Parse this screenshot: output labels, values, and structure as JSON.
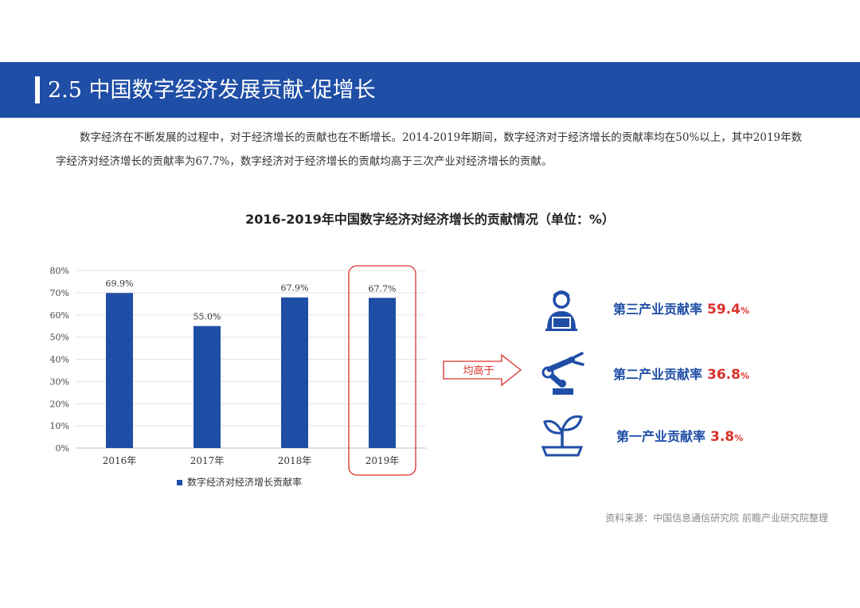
{
  "header": {
    "title": "2.5 中国数字经济发展贡献-促增长"
  },
  "intro": {
    "text": "数字经济在不断发展的过程中，对于经济增长的贡献也在不断增长。2014-2019年期间，数字经济对于经济增长的贡献率均在50%以上，其中2019年数字经济对经济增长的贡献率为67.7%，数字经济对于经济增长的贡献均高于三次产业对经济增长的贡献。"
  },
  "chart_data": {
    "type": "bar",
    "title": "2016-2019年中国数字经济对经济增长的贡献情况（单位：%）",
    "categories": [
      "2016年",
      "2017年",
      "2018年",
      "2019年"
    ],
    "series": [
      {
        "name": "数字经济对经济增长贡献率",
        "values": [
          69.9,
          55.0,
          67.9,
          67.7
        ]
      }
    ],
    "value_labels": [
      "69.9%",
      "55.0%",
      "67.9%",
      "67.7%"
    ],
    "ylim": [
      0,
      80
    ],
    "yticks": [
      "0%",
      "10%",
      "20%",
      "30%",
      "40%",
      "50%",
      "60%",
      "70%",
      "80%"
    ],
    "grid": true,
    "highlight_category": "2019年",
    "legend_position": "bottom",
    "bar_color": "#1f4ea6",
    "highlight_color": "#d9312b"
  },
  "comparison": {
    "arrow_label": "均高于",
    "items": [
      {
        "icon": "worker-at-laptop-icon",
        "label": "第三产业贡献率",
        "value": "59.4",
        "unit": "%"
      },
      {
        "icon": "robotic-arm-icon",
        "label": "第二产业贡献率",
        "value": "36.8",
        "unit": "%"
      },
      {
        "icon": "sprout-icon",
        "label": "第一产业贡献率",
        "value": "3.8",
        "unit": "%"
      }
    ]
  },
  "source": {
    "text": "资料来源：中国信息通信研究院 前瞻产业研究院整理"
  },
  "colors": {
    "brand": "#1f4ea6",
    "accent": "#d9312b"
  }
}
